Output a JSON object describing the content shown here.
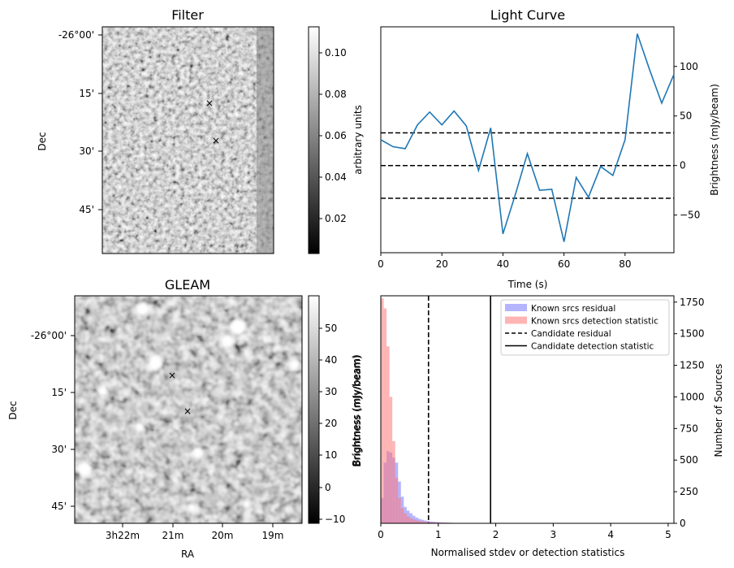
{
  "panels": {
    "filter": {
      "title": "Filter",
      "ylabel": "Dec",
      "colorbar_label": "arbitrary units",
      "ytick_labels": [
        "-26°00'",
        "15'",
        "30'",
        "45'"
      ],
      "colorbar_ticks": [
        "0.10",
        "0.08",
        "0.06",
        "0.04",
        "0.02"
      ]
    },
    "gleam": {
      "title": "GLEAM",
      "ylabel": "Dec",
      "xlabel": "RA",
      "colorbar_label": "Brightness (mJy/beam)",
      "ytick_labels": [
        "-26°00'",
        "15'",
        "30'",
        "45'"
      ],
      "xtick_labels": [
        "3h22m",
        "21m",
        "20m",
        "19m"
      ],
      "colorbar_ticks": [
        "50",
        "40",
        "30",
        "20",
        "10",
        "0",
        "−10"
      ]
    },
    "legend": [
      "Known srcs residual",
      "Known srcs detection statistic",
      "Candidate residual",
      "Candidate detection statistic"
    ]
  },
  "chart_data": [
    {
      "type": "line",
      "title": "Light Curve",
      "xlabel": "Time (s)",
      "ylabel": "Brightness (mJy/beam)",
      "xlim": [
        0,
        96
      ],
      "ylim": [
        -88,
        140
      ],
      "xticks": [
        0,
        20,
        40,
        60,
        80
      ],
      "yticks": [
        -50,
        0,
        50,
        100
      ],
      "color": "#1f77b4",
      "x": [
        0,
        4,
        8,
        12,
        16,
        20,
        24,
        28,
        32,
        36,
        40,
        44,
        48,
        52,
        56,
        60,
        64,
        68,
        72,
        76,
        80,
        84,
        88,
        92,
        96
      ],
      "y": [
        26,
        19,
        17,
        41,
        54,
        41,
        55,
        40,
        -5,
        38,
        -69,
        -30,
        12,
        -25,
        -24,
        -77,
        -12,
        -32,
        -1,
        -10,
        26,
        133,
        97,
        63,
        92
      ],
      "hlines": [
        33,
        0,
        -33
      ],
      "hline_style": "dashed"
    },
    {
      "type": "histogram",
      "xlabel": "Normalised stdev or detection statistics",
      "ylabel": "Number of Sources",
      "left_ylabel": "Brightness (mJy/beam)",
      "xlim": [
        0,
        5.1
      ],
      "ylim": [
        0,
        1800
      ],
      "xticks": [
        0,
        1,
        2,
        3,
        4,
        5
      ],
      "yticks": [
        0,
        250,
        500,
        750,
        1000,
        1250,
        1500,
        1750
      ],
      "bin_width": 0.05,
      "series": [
        {
          "name": "Known srcs residual",
          "color": "#7777ff",
          "alpha": 0.55,
          "start": 0.0,
          "counts": [
            200,
            480,
            570,
            560,
            520,
            480,
            330,
            210,
            130,
            100,
            80,
            60,
            45,
            35,
            28,
            22,
            18,
            14,
            12,
            10,
            8,
            7,
            6,
            5,
            4,
            3,
            3,
            2,
            2,
            2
          ]
        },
        {
          "name": "Known srcs detection statistic",
          "color": "#ff7777",
          "alpha": 0.55,
          "start": 0.0,
          "counts": [
            1780,
            1700,
            1400,
            1000,
            650,
            360,
            200,
            120,
            80,
            55,
            40,
            30,
            24,
            20,
            16,
            13,
            11,
            9,
            8,
            7,
            6,
            5,
            5,
            4,
            4,
            3,
            3,
            3,
            2,
            2,
            2,
            2,
            2,
            2,
            2,
            2,
            1,
            1,
            1,
            1
          ]
        }
      ],
      "vlines": [
        {
          "name": "Candidate residual",
          "x": 0.83,
          "style": "dashed"
        },
        {
          "name": "Candidate detection statistic",
          "x": 1.91,
          "style": "solid"
        }
      ]
    }
  ]
}
